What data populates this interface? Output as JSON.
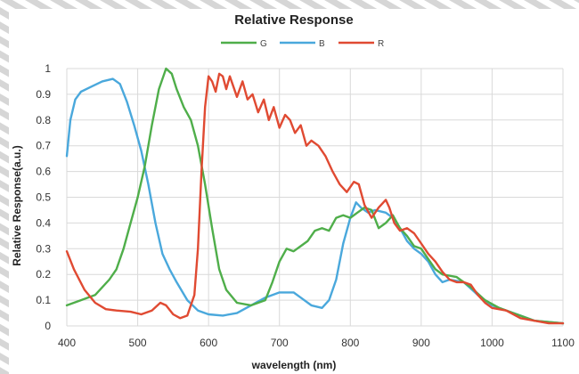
{
  "chart_data": {
    "type": "line",
    "title": "Relative Response",
    "xlabel": "wavelength (nm)",
    "ylabel": "Relative Response(a.u.)",
    "xlim": [
      400,
      1100
    ],
    "ylim": [
      0,
      1
    ],
    "x_ticks": [
      400,
      500,
      600,
      700,
      800,
      900,
      1000,
      1100
    ],
    "y_ticks": [
      0,
      0.1,
      0.2,
      0.3,
      0.4,
      0.5,
      0.6,
      0.7,
      0.8,
      0.9,
      1
    ],
    "y_tick_labels": [
      "0",
      "0.1",
      "0.2",
      "0.3",
      "0.4",
      "0.5",
      "0.6",
      "0.7",
      "0.8",
      "0.9",
      "1"
    ],
    "grid": true,
    "legend_position": "top-center",
    "series": [
      {
        "name": "G",
        "color": "#4fae4a",
        "points": [
          [
            400,
            0.08
          ],
          [
            420,
            0.1
          ],
          [
            440,
            0.12
          ],
          [
            460,
            0.18
          ],
          [
            470,
            0.22
          ],
          [
            480,
            0.3
          ],
          [
            490,
            0.4
          ],
          [
            500,
            0.5
          ],
          [
            510,
            0.62
          ],
          [
            520,
            0.78
          ],
          [
            530,
            0.92
          ],
          [
            540,
            1.0
          ],
          [
            548,
            0.98
          ],
          [
            555,
            0.92
          ],
          [
            565,
            0.85
          ],
          [
            575,
            0.8
          ],
          [
            585,
            0.7
          ],
          [
            595,
            0.55
          ],
          [
            605,
            0.38
          ],
          [
            615,
            0.22
          ],
          [
            625,
            0.14
          ],
          [
            640,
            0.09
          ],
          [
            660,
            0.08
          ],
          [
            680,
            0.1
          ],
          [
            690,
            0.17
          ],
          [
            700,
            0.25
          ],
          [
            710,
            0.3
          ],
          [
            720,
            0.29
          ],
          [
            730,
            0.31
          ],
          [
            740,
            0.33
          ],
          [
            750,
            0.37
          ],
          [
            760,
            0.38
          ],
          [
            770,
            0.37
          ],
          [
            780,
            0.42
          ],
          [
            790,
            0.43
          ],
          [
            800,
            0.42
          ],
          [
            810,
            0.44
          ],
          [
            820,
            0.46
          ],
          [
            830,
            0.45
          ],
          [
            840,
            0.38
          ],
          [
            850,
            0.4
          ],
          [
            860,
            0.43
          ],
          [
            870,
            0.38
          ],
          [
            880,
            0.35
          ],
          [
            890,
            0.31
          ],
          [
            900,
            0.3
          ],
          [
            910,
            0.26
          ],
          [
            920,
            0.22
          ],
          [
            930,
            0.2
          ],
          [
            950,
            0.19
          ],
          [
            970,
            0.15
          ],
          [
            990,
            0.1
          ],
          [
            1010,
            0.07
          ],
          [
            1030,
            0.05
          ],
          [
            1060,
            0.02
          ],
          [
            1100,
            0.01
          ]
        ]
      },
      {
        "name": "B",
        "color": "#4aa8dc",
        "points": [
          [
            400,
            0.66
          ],
          [
            405,
            0.8
          ],
          [
            412,
            0.88
          ],
          [
            420,
            0.91
          ],
          [
            435,
            0.93
          ],
          [
            450,
            0.95
          ],
          [
            465,
            0.96
          ],
          [
            475,
            0.94
          ],
          [
            485,
            0.87
          ],
          [
            495,
            0.78
          ],
          [
            505,
            0.68
          ],
          [
            515,
            0.55
          ],
          [
            525,
            0.4
          ],
          [
            535,
            0.28
          ],
          [
            545,
            0.22
          ],
          [
            555,
            0.17
          ],
          [
            570,
            0.1
          ],
          [
            585,
            0.06
          ],
          [
            600,
            0.045
          ],
          [
            620,
            0.04
          ],
          [
            640,
            0.05
          ],
          [
            660,
            0.08
          ],
          [
            680,
            0.11
          ],
          [
            700,
            0.13
          ],
          [
            720,
            0.13
          ],
          [
            730,
            0.11
          ],
          [
            745,
            0.08
          ],
          [
            760,
            0.07
          ],
          [
            770,
            0.1
          ],
          [
            780,
            0.18
          ],
          [
            790,
            0.32
          ],
          [
            800,
            0.42
          ],
          [
            808,
            0.48
          ],
          [
            815,
            0.46
          ],
          [
            825,
            0.44
          ],
          [
            835,
            0.45
          ],
          [
            850,
            0.44
          ],
          [
            860,
            0.42
          ],
          [
            870,
            0.38
          ],
          [
            880,
            0.33
          ],
          [
            890,
            0.3
          ],
          [
            900,
            0.28
          ],
          [
            910,
            0.25
          ],
          [
            920,
            0.2
          ],
          [
            930,
            0.17
          ],
          [
            940,
            0.18
          ],
          [
            960,
            0.17
          ],
          [
            980,
            0.12
          ],
          [
            1000,
            0.08
          ],
          [
            1020,
            0.06
          ],
          [
            1040,
            0.04
          ],
          [
            1060,
            0.02
          ],
          [
            1100,
            0.01
          ]
        ]
      },
      {
        "name": "R",
        "color": "#e04a32",
        "points": [
          [
            400,
            0.29
          ],
          [
            410,
            0.22
          ],
          [
            425,
            0.14
          ],
          [
            440,
            0.09
          ],
          [
            455,
            0.065
          ],
          [
            470,
            0.06
          ],
          [
            490,
            0.055
          ],
          [
            505,
            0.045
          ],
          [
            520,
            0.06
          ],
          [
            532,
            0.09
          ],
          [
            540,
            0.08
          ],
          [
            550,
            0.045
          ],
          [
            560,
            0.03
          ],
          [
            570,
            0.04
          ],
          [
            580,
            0.12
          ],
          [
            585,
            0.3
          ],
          [
            590,
            0.6
          ],
          [
            595,
            0.85
          ],
          [
            600,
            0.97
          ],
          [
            605,
            0.95
          ],
          [
            610,
            0.91
          ],
          [
            615,
            0.98
          ],
          [
            620,
            0.97
          ],
          [
            625,
            0.92
          ],
          [
            630,
            0.97
          ],
          [
            635,
            0.93
          ],
          [
            640,
            0.89
          ],
          [
            648,
            0.95
          ],
          [
            655,
            0.88
          ],
          [
            662,
            0.9
          ],
          [
            670,
            0.83
          ],
          [
            678,
            0.88
          ],
          [
            685,
            0.8
          ],
          [
            692,
            0.85
          ],
          [
            700,
            0.77
          ],
          [
            708,
            0.82
          ],
          [
            715,
            0.8
          ],
          [
            722,
            0.75
          ],
          [
            730,
            0.78
          ],
          [
            738,
            0.7
          ],
          [
            745,
            0.72
          ],
          [
            755,
            0.7
          ],
          [
            765,
            0.66
          ],
          [
            775,
            0.6
          ],
          [
            785,
            0.55
          ],
          [
            795,
            0.52
          ],
          [
            805,
            0.56
          ],
          [
            812,
            0.55
          ],
          [
            820,
            0.47
          ],
          [
            830,
            0.42
          ],
          [
            840,
            0.46
          ],
          [
            850,
            0.49
          ],
          [
            855,
            0.46
          ],
          [
            862,
            0.4
          ],
          [
            870,
            0.37
          ],
          [
            880,
            0.38
          ],
          [
            890,
            0.36
          ],
          [
            900,
            0.32
          ],
          [
            910,
            0.28
          ],
          [
            920,
            0.25
          ],
          [
            930,
            0.21
          ],
          [
            940,
            0.18
          ],
          [
            950,
            0.17
          ],
          [
            960,
            0.17
          ],
          [
            970,
            0.16
          ],
          [
            980,
            0.12
          ],
          [
            990,
            0.09
          ],
          [
            1000,
            0.07
          ],
          [
            1020,
            0.06
          ],
          [
            1040,
            0.03
          ],
          [
            1060,
            0.02
          ],
          [
            1080,
            0.01
          ],
          [
            1100,
            0.01
          ]
        ]
      }
    ]
  },
  "colors": {
    "grid": "#d9d9d9",
    "frame_stripes": "#d6d6d6"
  }
}
